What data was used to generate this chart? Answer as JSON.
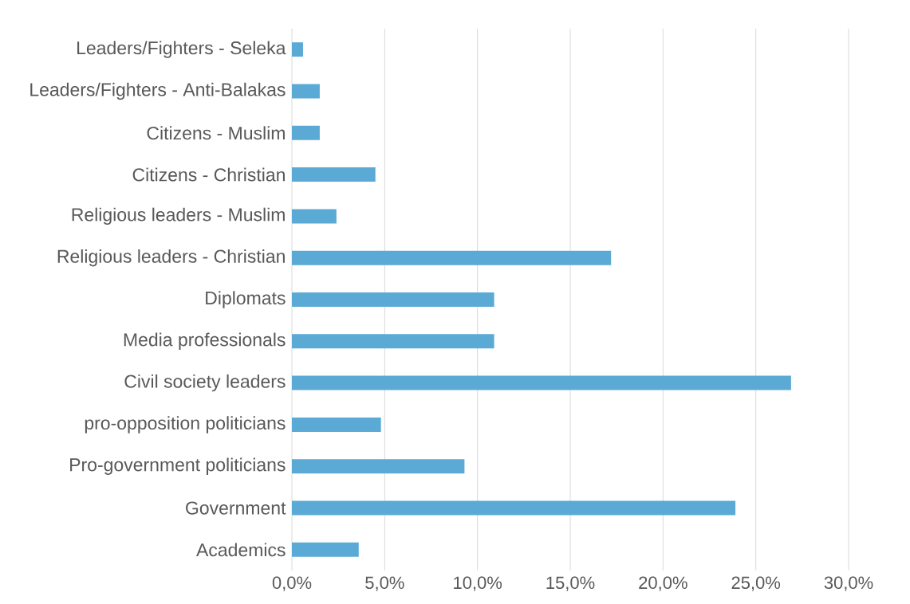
{
  "chart_data": {
    "type": "bar",
    "orientation": "horizontal",
    "categories": [
      "Leaders/Fighters - Seleka",
      "Leaders/Fighters - Anti-Balakas",
      "Citizens - Muslim",
      "Citizens - Christian",
      "Religious leaders - Muslim",
      "Religious leaders - Christian",
      "Diplomats",
      "Media professionals",
      "Civil society leaders",
      "pro-opposition politicians",
      "Pro-government politicians",
      "Government",
      "Academics"
    ],
    "values": [
      0.6,
      1.5,
      1.5,
      4.5,
      2.4,
      17.2,
      10.9,
      10.9,
      26.9,
      4.8,
      9.3,
      23.9,
      3.6
    ],
    "color": "#5aaad5",
    "xlim": [
      0,
      30
    ],
    "xticks": [
      {
        "value": 0,
        "label": "0,0%"
      },
      {
        "value": 5,
        "label": "5,0%"
      },
      {
        "value": 10,
        "label": "10,0%"
      },
      {
        "value": 15,
        "label": "15,0%"
      },
      {
        "value": 20,
        "label": "20,0%"
      },
      {
        "value": 25,
        "label": "25,0%"
      },
      {
        "value": 30,
        "label": "30,0%"
      }
    ],
    "grid": "x"
  }
}
